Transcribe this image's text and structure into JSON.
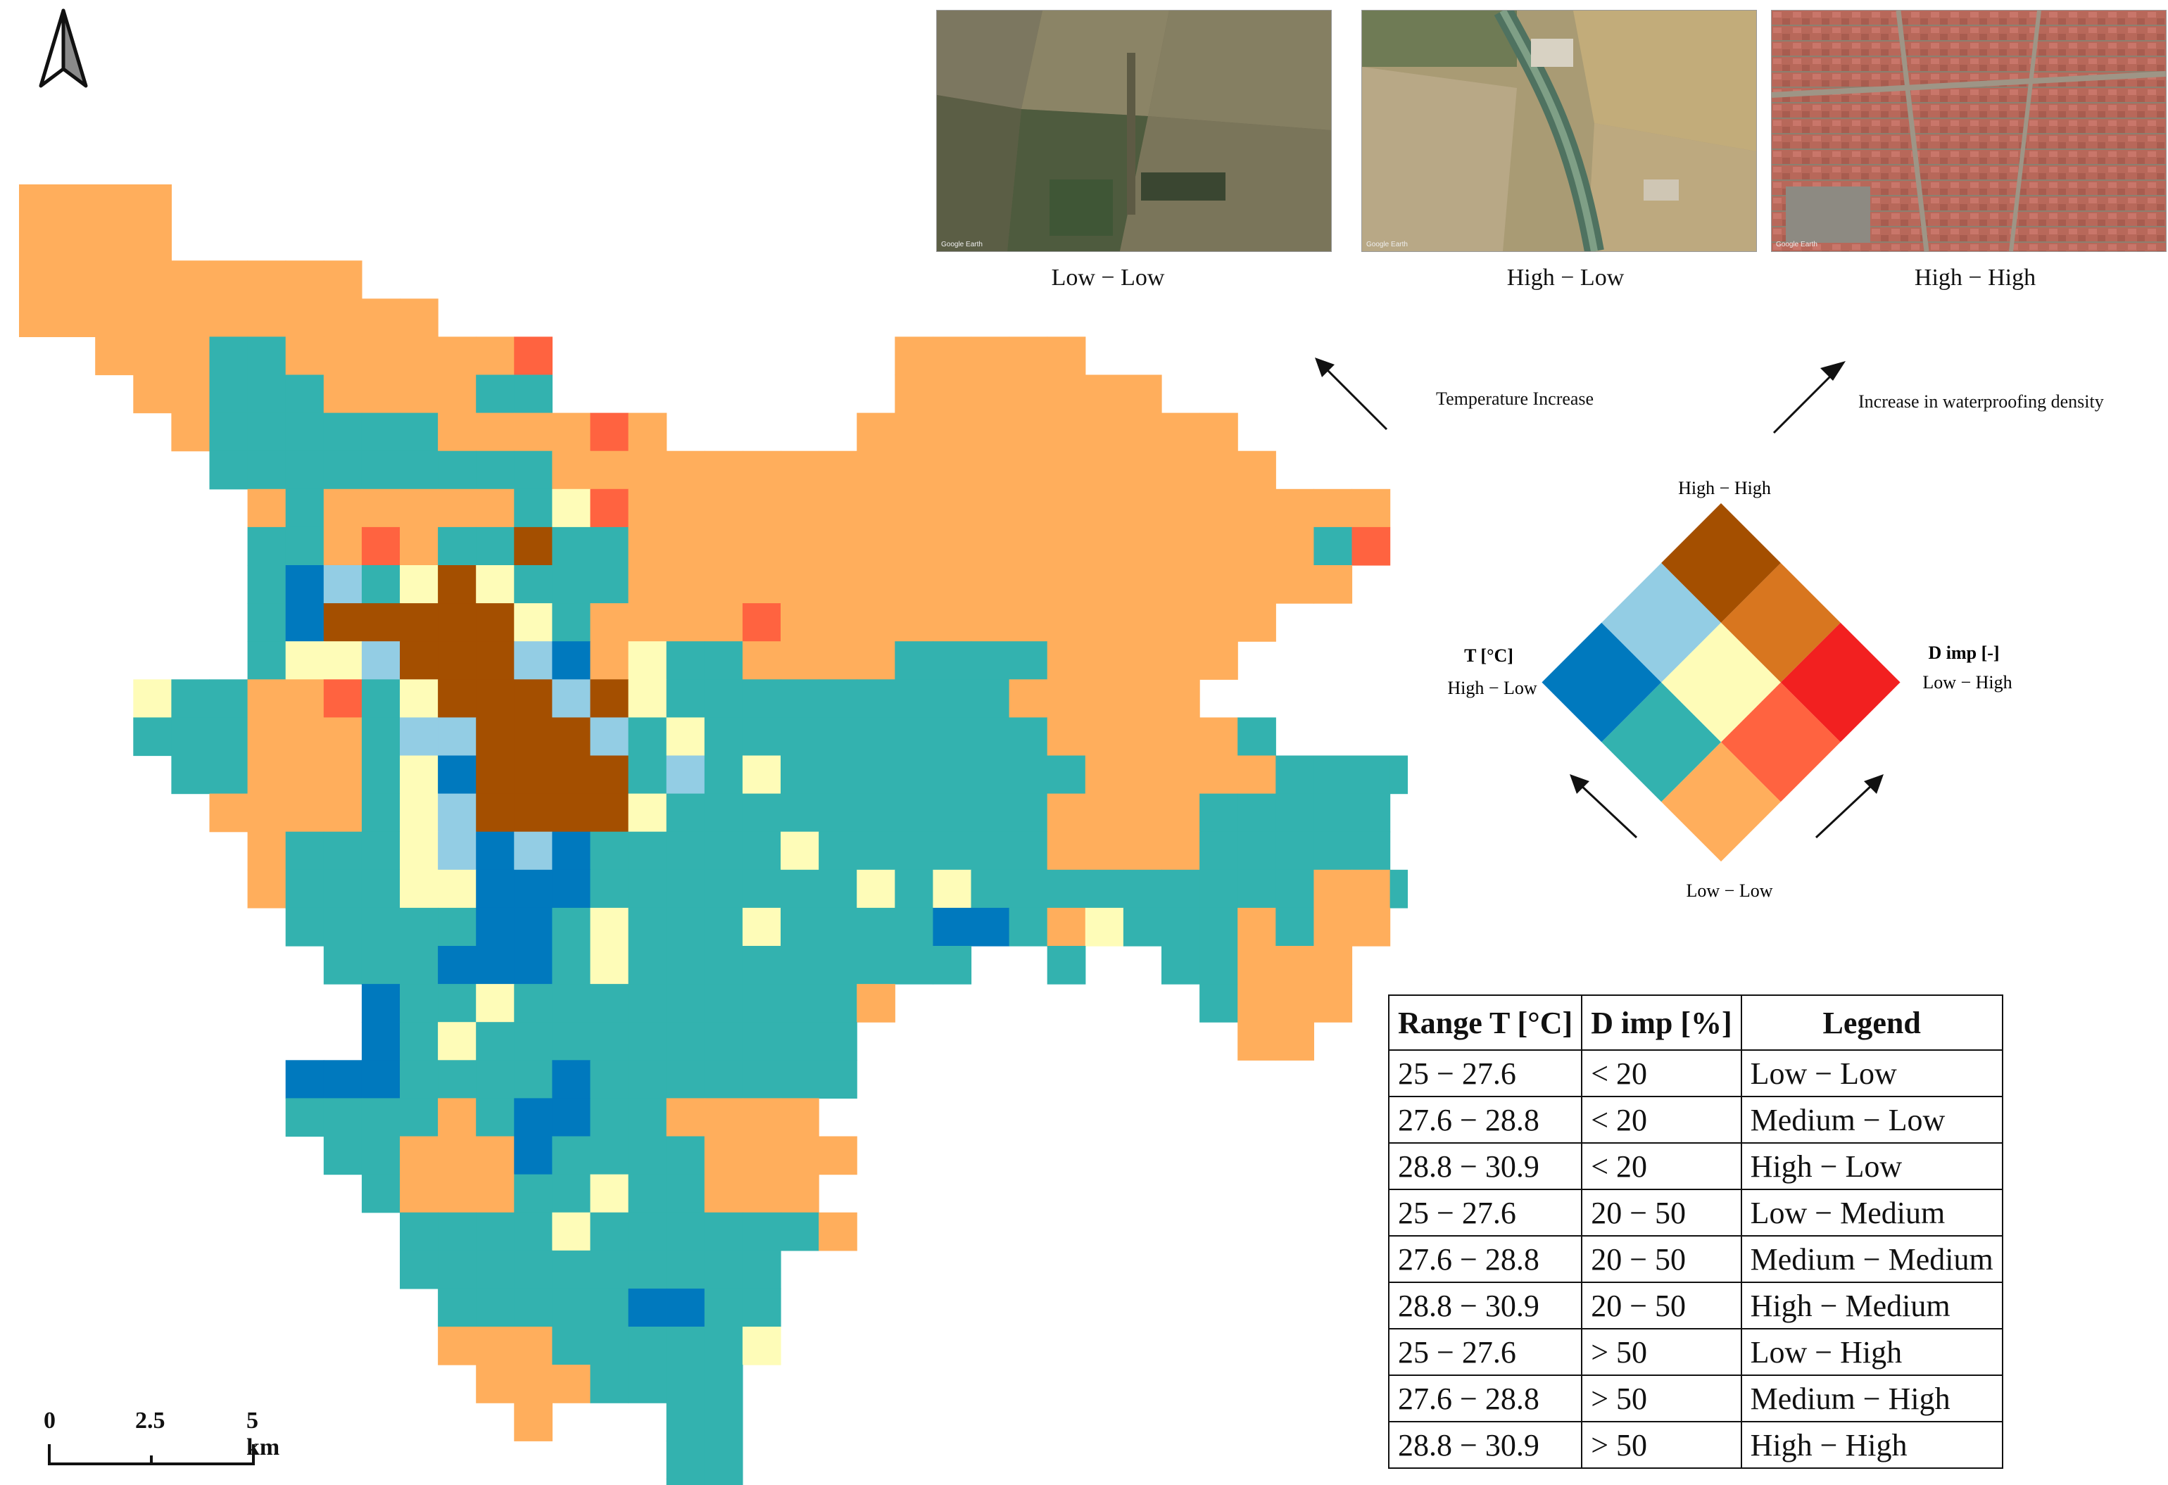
{
  "photos": [
    {
      "label": "Low − Low",
      "credit": "Google Earth"
    },
    {
      "label": "High − Low",
      "credit": "Google Earth"
    },
    {
      "label": "High − High",
      "credit": "Google Earth"
    }
  ],
  "notes": {
    "temperature": "Temperature Increase",
    "waterproofing": "Increase in waterproofing density"
  },
  "legend": {
    "top": "High − High",
    "bottom": "Low − Low",
    "left_title": "T [°C]",
    "left_sub": "High − Low",
    "right_title": "D imp [-]",
    "right_sub": "Low − High",
    "colors": {
      "hh": "#A44F00",
      "hm": "#D8761F",
      "hl": "#F22020",
      "mh": "#93CDE4",
      "mm": "#FEFCB8",
      "ml": "#FF6340",
      "lh": "#0079BE",
      "lm": "#33B2AF",
      "ll": "#FFAE5C"
    }
  },
  "table": {
    "headers": [
      "Range T [°C]",
      "D imp [%]",
      "Legend"
    ],
    "rows": [
      [
        "25 − 27.6",
        "< 20",
        "Low − Low"
      ],
      [
        "27.6 − 28.8",
        "< 20",
        "Medium − Low"
      ],
      [
        "28.8 − 30.9",
        "< 20",
        "High − Low"
      ],
      [
        "25 − 27.6",
        "20 − 50",
        "Low − Medium"
      ],
      [
        "27.6 − 28.8",
        "20 − 50",
        "Medium − Medium"
      ],
      [
        "28.8 − 30.9",
        "20 − 50",
        "High − Medium"
      ],
      [
        "25 − 27.6",
        "> 50",
        "Low − High"
      ],
      [
        "27.6 − 28.8",
        "> 50",
        "Medium − High"
      ],
      [
        "28.8 − 30.9",
        "> 50",
        "High − High"
      ]
    ]
  },
  "scale": {
    "labels": [
      "0",
      "2.5",
      "5 km"
    ]
  },
  "map": {
    "cols": 37,
    "rows": [
      "LLLL",
      "LLLL",
      "LLLLLLLLL",
      "LLLLLLLLLLL",
      "  LLLCCLLLLLLR         LLLLL",
      "   LLCCCLLLLCC         LLLLLLL",
      "    LCCCCCCLLLLRL     LLLLLLLLLL",
      "     CCCCCCCCCLLLLLLLLLLLLLLLLLLL",
      "      LCLLLLLCYRLLLLLLLLLLLLLLLLLLLL",
      "      CCLRLCCHCCLLLLLLLLLLLLLLLLLLCR",
      "      CBMCYHYCCCLLLLLLLLLLLLLLLLLLL",
      "      CBHHHHHYCLLLLRLLLLLLLLLLLLL",
      "      CYYMHHHMBLYCCLLLLCCCCLLLLL",
      "   YCCLLRCYHHHMHYCCCCCCCCCLLLLL",
      "   CCCLLLCMMHHHMCYCCCCCCCCCLLLLLC",
      "    CCLLLCYBHHHHCMCYCCCCCCCCLLLLLCCCC",
      "     LLLLCYMHHHHYCCCCCCCCCCLLLLCCCCC",
      "      LCCCYMBMBCCCCCYCCCCCCLLLLCCCCC",
      "      LCCCYYBBBCCCCCCCYCYCCCCCCCCCLLCLY",
      "       CCCCCBBCYCCCYCCCCBBCLYCCCLCLL",
      "        CCCBBBCYCCCCCCCCC  C  CCLLL",
      "         BCCYCCCCCCCCCL        CLLL",
      "         BCYCCCCCCCCCC          LL",
      "       BBBCCCCBCCCCCCC",
      "       CCCCLCBBCCLLLL",
      "        CCLLLBCCCCLLLL",
      "         CLLLCCYCCLLL",
      "          CCCCYCCCCCCL",
      "          CCCCCCCCCC",
      "           CCCCCBBCC",
      "           LLLCCCCCY",
      "            LLLCCCC",
      "             L   CC",
      "                 CC",
      "                 CC"
    ]
  }
}
